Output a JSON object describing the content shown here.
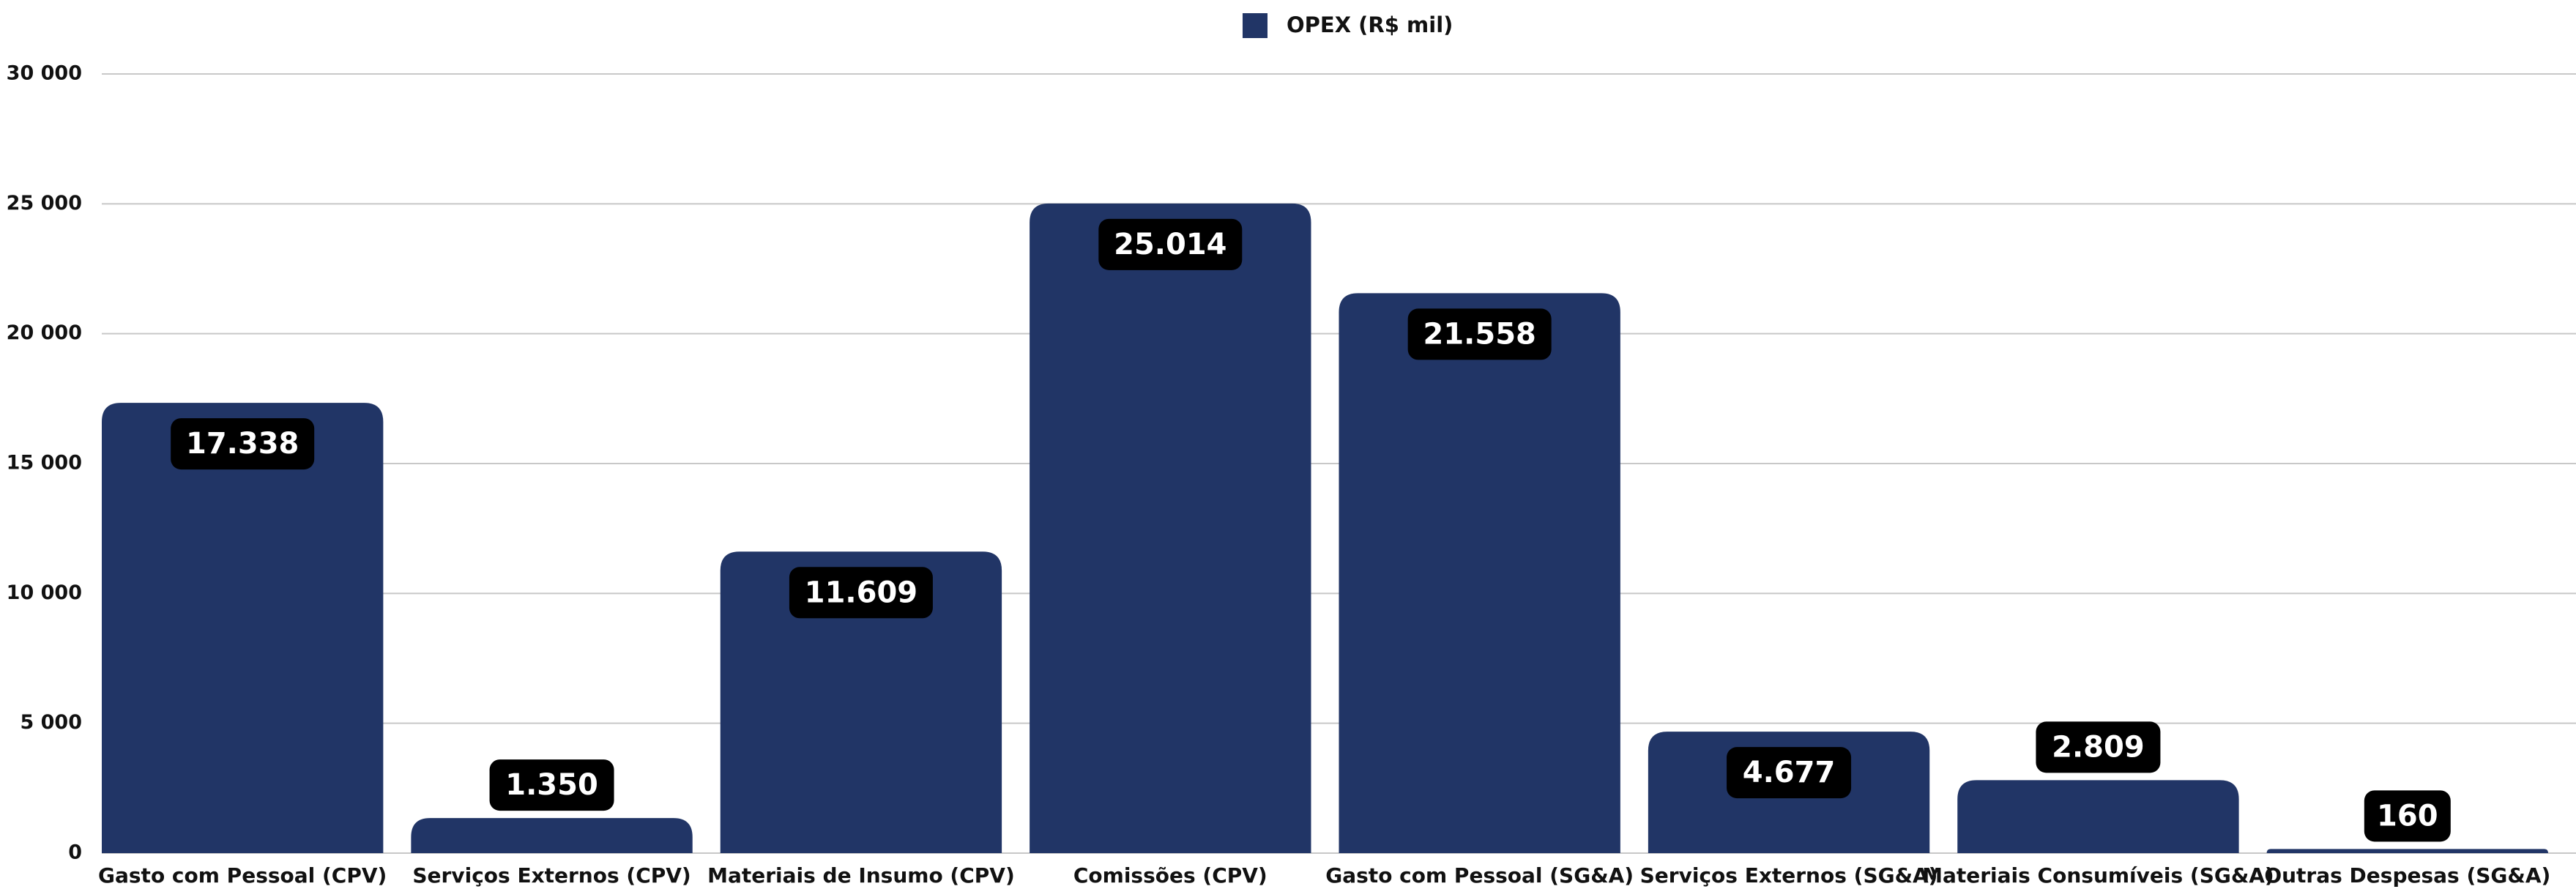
{
  "chart_data": {
    "type": "bar",
    "categories": [
      "Gasto com Pessoal (CPV)",
      "Serviços Externos (CPV)",
      "Materiais de Insumo (CPV)",
      "Comissões (CPV)",
      "Gasto com Pessoal (SG&A)",
      "Serviços Externos (SG&A)",
      "Materiais Consumíveis (SG&A)",
      "Outras Despesas (SG&A)"
    ],
    "series": [
      {
        "name": "OPEX (R$ mil)",
        "color": "#213566",
        "values": [
          17338,
          1350,
          11609,
          25014,
          21558,
          4677,
          2809,
          160
        ],
        "value_labels": [
          "17.338",
          "1.350",
          "11.609",
          "25.014",
          "21.558",
          "4.677",
          "2.809",
          "160"
        ]
      }
    ],
    "ylim": [
      0,
      30000
    ],
    "yticks": [
      0,
      {
        "value": 5000,
        "label": "5 000"
      },
      {
        "value": 10000,
        "label": "10 000"
      },
      {
        "value": 15000,
        "label": "15 000"
      },
      {
        "value": 20000,
        "label": "20 000"
      },
      {
        "value": 25000,
        "label": "25 000"
      },
      {
        "value": 30000,
        "label": "30 000"
      }
    ],
    "grid": true,
    "legend": "top"
  }
}
